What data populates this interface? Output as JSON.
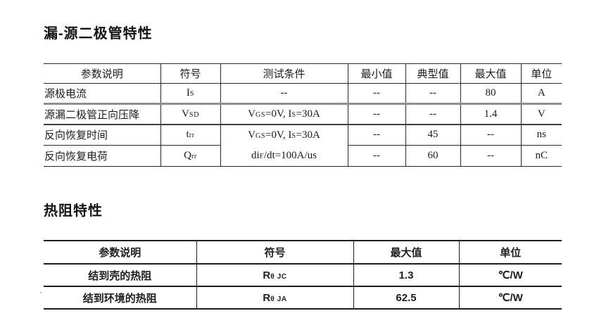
{
  "colors": {
    "text": "#1a1a1a",
    "border_dark": "#2a2a2a",
    "border_gray": "#8f8f8f"
  },
  "section1": {
    "title": "漏-源二极管特性",
    "table": {
      "headers": [
        "参数说明",
        "符号",
        "测试条件",
        "最小值",
        "典型值",
        "最大值",
        "单位"
      ],
      "rows": [
        {
          "param": "源极电流",
          "symbol": [
            {
              "t": "I"
            },
            {
              "t": "S",
              "sub": true
            }
          ],
          "cond": [
            {
              "t": "--"
            }
          ],
          "min": "--",
          "typ": "--",
          "max": "80",
          "unit": "A"
        },
        {
          "param": "源漏二极管正向压降",
          "symbol": [
            {
              "t": "V"
            },
            {
              "t": "SD",
              "sub": true
            }
          ],
          "cond": [
            {
              "t": "V"
            },
            {
              "t": "GS",
              "sub": true
            },
            {
              "t": "=0V, I"
            },
            {
              "t": "S",
              "sub": true
            },
            {
              "t": "=30A"
            }
          ],
          "min": "--",
          "typ": "--",
          "max": "1.4",
          "unit": "V"
        },
        {
          "param": "反向恢复时间",
          "symbol": [
            {
              "t": "t"
            },
            {
              "t": "rr",
              "sub": true
            }
          ],
          "cond_lines": {
            "line1": [
              {
                "t": "V"
              },
              {
                "t": "GS",
                "sub": true
              },
              {
                "t": "=0V, I"
              },
              {
                "t": "S",
                "sub": true
              },
              {
                "t": "=30A"
              }
            ],
            "line2": [
              {
                "t": "di"
              },
              {
                "t": "F",
                "sub": true
              },
              {
                "t": "/dt=100A/us"
              }
            ]
          },
          "min": "--",
          "typ": "45",
          "max": "--",
          "unit": "ns"
        },
        {
          "param": "反向恢复电荷",
          "symbol": [
            {
              "t": "Q"
            },
            {
              "t": "rr",
              "sub": true
            }
          ],
          "min": "--",
          "typ": "60",
          "max": "--",
          "unit": "nC"
        }
      ]
    }
  },
  "section2": {
    "title": "热阻特性",
    "table": {
      "headers": [
        "参数说明",
        "符号",
        "最大值",
        "单位"
      ],
      "rows": [
        {
          "param": "结到壳的热阻",
          "symbol": [
            {
              "t": "R"
            },
            {
              "t": "θ",
              "sub": true
            },
            {
              "t": " JC",
              "sub": true
            }
          ],
          "max": "1.3",
          "unit": "℃/W"
        },
        {
          "param": "结到环境的热阻",
          "symbol": [
            {
              "t": "R"
            },
            {
              "t": "θ",
              "sub": true
            },
            {
              "t": " JA",
              "sub": true
            }
          ],
          "max": "62.5",
          "unit": "℃/W"
        }
      ]
    }
  },
  "stray_mark": "·"
}
